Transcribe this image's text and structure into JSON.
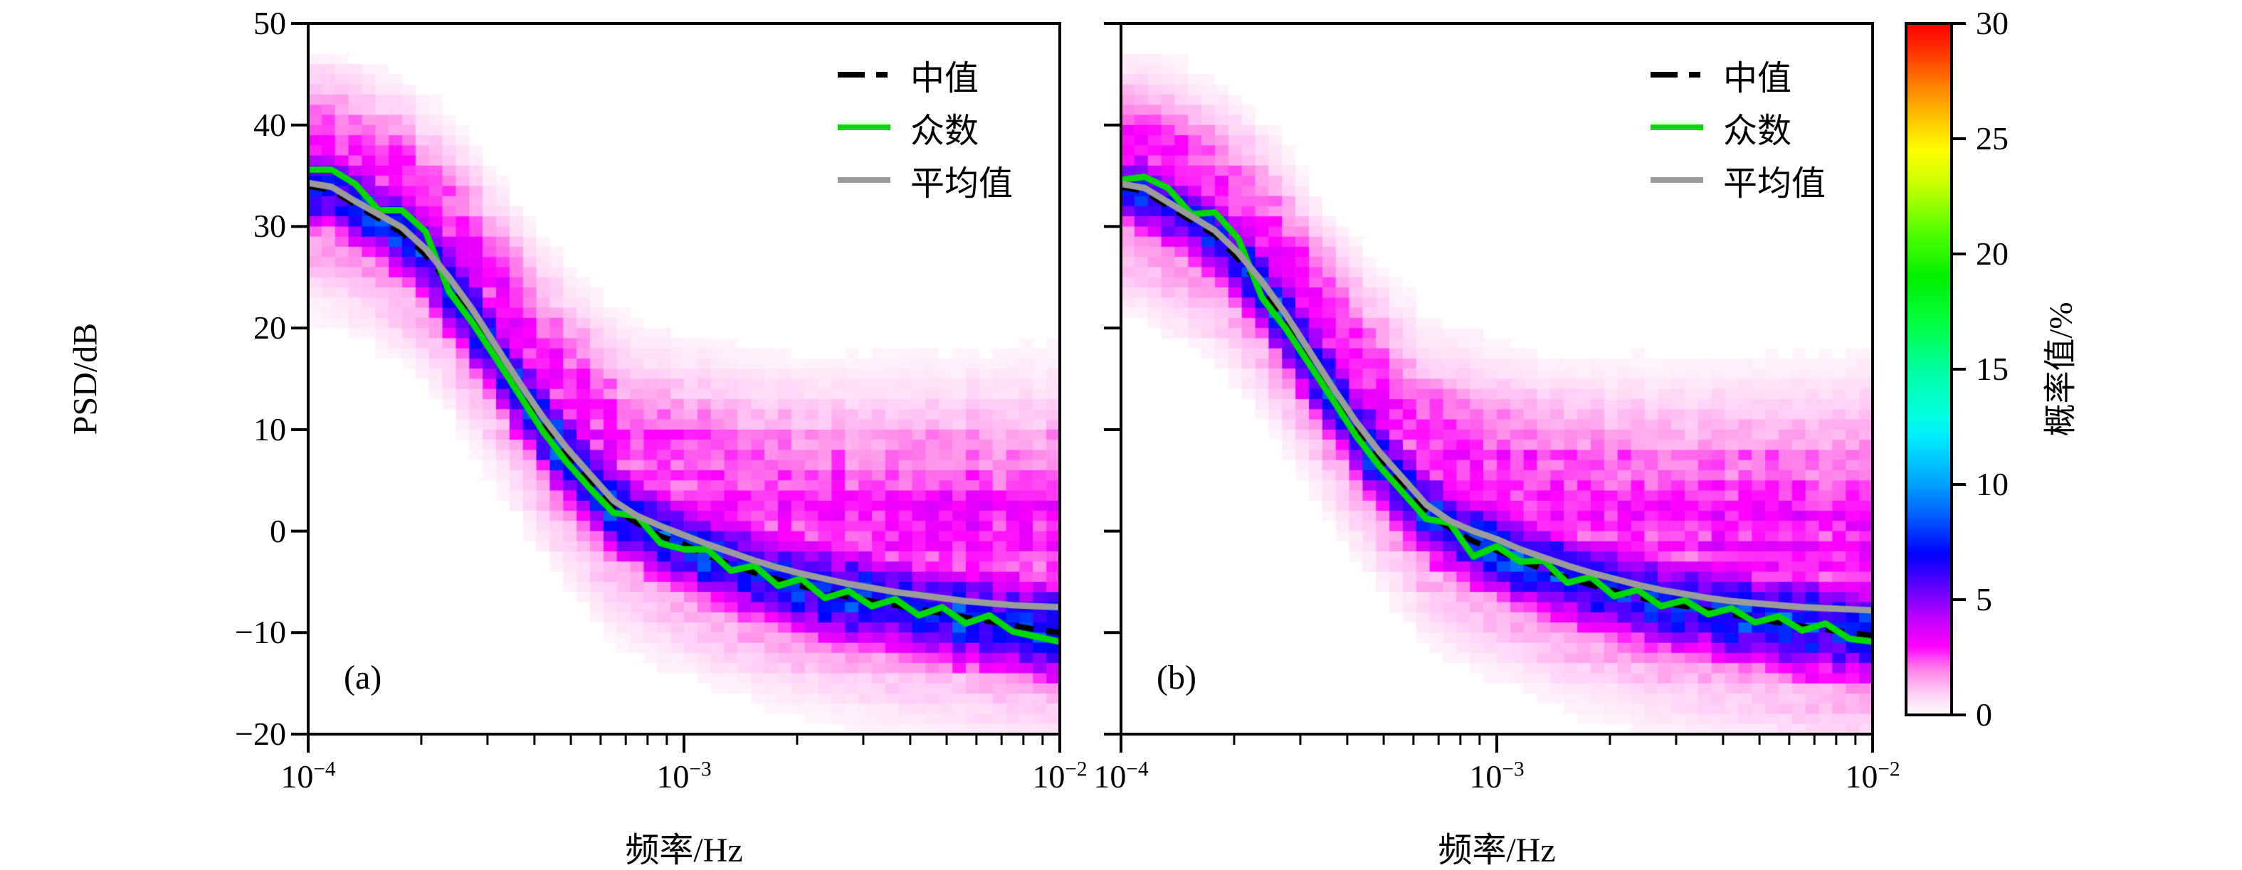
{
  "figure": {
    "background": "#ffffff",
    "frame_color": "#000000",
    "panel_letters": [
      "(a)",
      "(b)"
    ]
  },
  "colorbar": {
    "label": "概率值/%",
    "range": [
      0,
      30
    ],
    "ticks": [
      0,
      5,
      10,
      15,
      20,
      25,
      30
    ],
    "stops": [
      [
        0,
        "#ffffff"
      ],
      [
        1,
        "#ffccf4"
      ],
      [
        2,
        "#ff80e8"
      ],
      [
        3,
        "#ff00ff"
      ],
      [
        4,
        "#cc00ff"
      ],
      [
        5,
        "#8800ff"
      ],
      [
        6,
        "#4400ff"
      ],
      [
        7,
        "#0000ff"
      ],
      [
        8.5,
        "#0055ff"
      ],
      [
        10,
        "#00a0ff"
      ],
      [
        12,
        "#00eaff"
      ],
      [
        13,
        "#00ffe0"
      ],
      [
        15,
        "#00ffa0"
      ],
      [
        17,
        "#00ff40"
      ],
      [
        19,
        "#00f000"
      ],
      [
        21,
        "#55ff00"
      ],
      [
        23,
        "#c8ff00"
      ],
      [
        24.5,
        "#ffff00"
      ],
      [
        26,
        "#ffc000"
      ],
      [
        27.5,
        "#ff7700"
      ],
      [
        29,
        "#ff2a00"
      ],
      [
        30,
        "#ff0000"
      ]
    ]
  },
  "chart_data": [
    {
      "type": "heatmap",
      "panel_label": "(a)",
      "xlabel": "频率/Hz",
      "ylabel": "PSD/dB",
      "x_scale": "log",
      "xlim": [
        0.0001,
        0.01
      ],
      "ylim": [
        -20,
        50
      ],
      "x_ticks": [
        {
          "mantissa": "10",
          "exponent": "−4"
        },
        {
          "mantissa": "10",
          "exponent": "−3"
        },
        {
          "mantissa": "10",
          "exponent": "−2"
        }
      ],
      "y_ticks": [
        "50",
        "40",
        "30",
        "20",
        "10",
        "0",
        "−10",
        "−20"
      ],
      "y_tick_values": [
        50,
        40,
        30,
        20,
        10,
        0,
        -10,
        -20
      ],
      "log10_f": [
        -4.0,
        -3.9375,
        -3.875,
        -3.8125,
        -3.75,
        -3.6875,
        -3.625,
        -3.5625,
        -3.5,
        -3.4375,
        -3.375,
        -3.3125,
        -3.25,
        -3.1875,
        -3.125,
        -3.0625,
        -3.0,
        -2.9375,
        -2.875,
        -2.8125,
        -2.75,
        -2.6875,
        -2.625,
        -2.5625,
        -2.5,
        -2.4375,
        -2.375,
        -2.3125,
        -2.25,
        -2.1875,
        -2.125,
        -2.0625,
        -2.0
      ],
      "series": [
        {
          "name": "中值",
          "style": "dashed",
          "color": "#000000",
          "values": [
            34.0,
            33.6,
            32.2,
            30.8,
            29.4,
            27.2,
            24.4,
            21.0,
            17.4,
            13.9,
            10.4,
            7.4,
            4.8,
            2.2,
            0.8,
            -0.5,
            -1.3,
            -2.4,
            -3.3,
            -4.1,
            -4.8,
            -5.4,
            -6.0,
            -6.5,
            -6.9,
            -7.3,
            -7.7,
            -8.1,
            -8.5,
            -8.9,
            -9.3,
            -9.7,
            -10.0
          ]
        },
        {
          "name": "众数",
          "style": "solid",
          "color": "#00d800",
          "values": [
            35.6,
            35.6,
            34.2,
            31.6,
            31.6,
            29.5,
            23.6,
            20.5,
            17.0,
            13.4,
            9.8,
            6.8,
            4.2,
            1.8,
            1.5,
            -1.2,
            -1.8,
            -1.8,
            -3.9,
            -3.4,
            -5.4,
            -4.7,
            -6.6,
            -5.9,
            -7.4,
            -6.7,
            -8.3,
            -7.5,
            -9.1,
            -8.3,
            -9.9,
            -10.4,
            -10.9
          ]
        },
        {
          "name": "平均值",
          "style": "solid",
          "color": "#9b9b9b",
          "values": [
            34.3,
            33.9,
            32.5,
            31.2,
            29.9,
            27.8,
            25.0,
            21.8,
            18.2,
            14.6,
            11.2,
            8.2,
            5.6,
            3.0,
            1.5,
            0.5,
            -0.4,
            -1.3,
            -2.1,
            -2.9,
            -3.6,
            -4.2,
            -4.7,
            -5.2,
            -5.6,
            -6.0,
            -6.3,
            -6.6,
            -6.9,
            -7.1,
            -7.3,
            -7.4,
            -7.5
          ]
        }
      ],
      "pdf_model": {
        "cols": 56,
        "rows": 70,
        "seed": 20240107,
        "peak": 7.4,
        "sigma_down": [
          2.6,
          3.4
        ],
        "sigma_up": [
          2.6,
          3.6
        ],
        "tail_up": {
          "offset": [
            4.5,
            10.0
          ],
          "sigma": [
            4.0,
            8.0
          ],
          "amp": [
            2.6,
            3.0
          ]
        },
        "tail_down": {
          "offset": -4.0,
          "sigma": 4.5,
          "amp": 1.6
        },
        "slope_widen": 0.8,
        "cutoff": 0.22
      }
    },
    {
      "type": "heatmap",
      "panel_label": "(b)",
      "xlabel": "频率/Hz",
      "ylabel": "PSD/dB",
      "x_scale": "log",
      "xlim": [
        0.0001,
        0.01
      ],
      "ylim": [
        -20,
        50
      ],
      "x_ticks": [
        {
          "mantissa": "10",
          "exponent": "−4"
        },
        {
          "mantissa": "10",
          "exponent": "−3"
        },
        {
          "mantissa": "10",
          "exponent": "−2"
        }
      ],
      "y_ticks": [
        "50",
        "40",
        "30",
        "20",
        "10",
        "0",
        "−10",
        "−20"
      ],
      "y_tick_values": [
        50,
        40,
        30,
        20,
        10,
        0,
        -10,
        -20
      ],
      "shared_colorbar": true,
      "log10_f": [
        -4.0,
        -3.9375,
        -3.875,
        -3.8125,
        -3.75,
        -3.6875,
        -3.625,
        -3.5625,
        -3.5,
        -3.4375,
        -3.375,
        -3.3125,
        -3.25,
        -3.1875,
        -3.125,
        -3.0625,
        -3.0,
        -2.9375,
        -2.875,
        -2.8125,
        -2.75,
        -2.6875,
        -2.625,
        -2.5625,
        -2.5,
        -2.4375,
        -2.375,
        -2.3125,
        -2.25,
        -2.1875,
        -2.125,
        -2.0625,
        -2.0
      ],
      "series": [
        {
          "name": "中值",
          "style": "dashed",
          "color": "#000000",
          "values": [
            33.9,
            33.5,
            32.0,
            30.6,
            29.2,
            26.8,
            24.0,
            20.6,
            17.0,
            13.5,
            10.0,
            7.0,
            4.4,
            1.8,
            0.3,
            -1.0,
            -1.9,
            -2.9,
            -3.8,
            -4.6,
            -5.3,
            -5.9,
            -6.5,
            -7.0,
            -7.4,
            -7.8,
            -8.2,
            -8.6,
            -9.0,
            -9.4,
            -9.7,
            -10.0,
            -10.3
          ]
        },
        {
          "name": "众数",
          "style": "solid",
          "color": "#00d800",
          "values": [
            34.6,
            34.9,
            33.8,
            31.2,
            31.4,
            28.8,
            23.0,
            20.0,
            16.5,
            13.0,
            9.4,
            6.4,
            3.8,
            1.2,
            0.8,
            -2.5,
            -1.5,
            -3.0,
            -2.9,
            -5.1,
            -4.5,
            -6.4,
            -5.8,
            -7.4,
            -6.8,
            -8.2,
            -7.6,
            -9.0,
            -8.4,
            -9.8,
            -9.1,
            -10.6,
            -10.9
          ]
        },
        {
          "name": "平均值",
          "style": "solid",
          "color": "#9b9b9b",
          "values": [
            34.2,
            33.8,
            32.4,
            31.0,
            29.6,
            27.4,
            24.6,
            21.4,
            17.8,
            14.2,
            10.8,
            7.8,
            5.2,
            2.6,
            1.0,
            0.0,
            -0.8,
            -1.8,
            -2.6,
            -3.4,
            -4.1,
            -4.7,
            -5.3,
            -5.8,
            -6.2,
            -6.6,
            -6.9,
            -7.1,
            -7.3,
            -7.5,
            -7.6,
            -7.7,
            -7.8
          ]
        }
      ],
      "pdf_model": {
        "cols": 56,
        "rows": 70,
        "seed": 99173,
        "peak": 7.4,
        "sigma_down": [
          2.6,
          3.4
        ],
        "sigma_up": [
          2.6,
          3.6
        ],
        "tail_up": {
          "offset": [
            4.5,
            10.0
          ],
          "sigma": [
            4.0,
            8.0
          ],
          "amp": [
            2.6,
            3.0
          ]
        },
        "tail_down": {
          "offset": -4.0,
          "sigma": 4.5,
          "amp": 1.6
        },
        "slope_widen": 0.8,
        "cutoff": 0.22
      }
    }
  ],
  "layout_text": {
    "note": "all strings above are the only visible text in the figure"
  }
}
